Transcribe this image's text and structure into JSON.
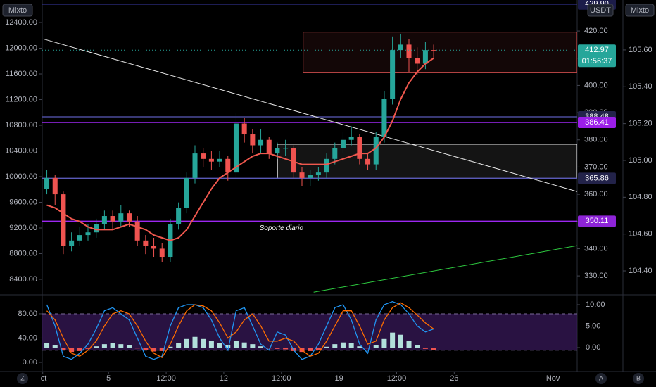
{
  "chart_data": [
    {
      "type": "candlestick",
      "scale_label": "Mixto",
      "scale_label_right": "Mixto",
      "currency": "USDT",
      "countdown": "01:56:37",
      "annotation": "Soporte diario",
      "x": [
        1.25,
        1.75,
        2.25,
        2.75,
        3.25,
        3.75,
        4.25,
        4.75,
        5.25,
        5.75,
        6.25,
        6.75,
        7.25,
        7.75,
        8.25,
        8.75,
        9.25,
        9.75,
        10.25,
        10.75,
        11.25,
        11.75,
        12.25,
        12.75,
        13.25,
        13.75,
        14.25,
        14.75,
        15.25,
        15.75,
        16.25,
        16.75,
        17.25,
        17.75,
        18.25,
        18.75,
        19.25,
        19.75,
        20.25,
        20.75,
        21.25,
        21.75,
        22.25,
        22.75,
        23.25,
        23.75,
        24.25,
        24.75
      ],
      "open": [
        362,
        366,
        360,
        341,
        343,
        345,
        346,
        349,
        352,
        350,
        353,
        350,
        343,
        341,
        340,
        337,
        349,
        355,
        366,
        375,
        373,
        372,
        373,
        368,
        386,
        382,
        378,
        380,
        375,
        377,
        377,
        368,
        366,
        367,
        368,
        373,
        377,
        380,
        381,
        373,
        371,
        381,
        395,
        413,
        415,
        410,
        408,
        413
      ],
      "high": [
        369,
        367,
        361,
        346,
        348,
        349,
        351,
        354,
        354,
        356,
        354,
        352,
        345,
        344,
        342,
        351,
        357,
        368,
        378,
        377,
        376,
        376,
        374,
        390,
        388,
        384,
        384,
        381,
        379,
        380,
        378,
        370,
        369,
        370,
        375,
        379,
        383,
        385,
        382,
        375,
        383,
        398,
        418,
        419,
        417,
        414,
        416,
        415
      ],
      "low": [
        360,
        356,
        338,
        339,
        341,
        343,
        344,
        347,
        347,
        348,
        348,
        341,
        338,
        337,
        335,
        335,
        347,
        353,
        364,
        370,
        369,
        370,
        365,
        366,
        379,
        375,
        375,
        373,
        373,
        374,
        366,
        363,
        363,
        365,
        366,
        371,
        375,
        378,
        371,
        369,
        369,
        379,
        393,
        410,
        405,
        404,
        406,
        410
      ],
      "close": [
        366,
        360,
        341,
        343,
        345,
        346,
        349,
        352,
        350,
        353,
        350,
        343,
        341,
        340,
        337,
        349,
        355,
        366,
        375,
        373,
        372,
        373,
        368,
        386,
        382,
        378,
        380,
        375,
        377,
        377,
        368,
        366,
        367,
        368,
        373,
        377,
        380,
        381,
        373,
        371,
        381,
        395,
        413,
        415,
        410,
        408,
        413,
        412.97
      ],
      "up_color": "#26a69a",
      "down_color": "#ef5350",
      "ma": [
        356,
        355,
        353,
        351,
        350,
        348,
        347,
        347,
        347,
        348,
        349,
        348,
        347,
        345,
        344,
        343,
        344,
        347,
        352,
        357,
        362,
        366,
        368,
        370,
        372,
        374,
        375,
        375,
        374,
        373,
        372,
        371,
        371,
        371,
        371,
        372,
        373,
        374,
        375,
        375,
        377,
        381,
        387,
        395,
        401,
        405,
        408,
        410
      ],
      "ma_color": "#f0584e",
      "xlim": [
        0.97,
        33.47
      ],
      "xticks": [
        {
          "value": 1,
          "label": "ct"
        },
        5,
        {
          "value": 8.5,
          "label": "12:00"
        },
        12,
        {
          "value": 15.5,
          "label": "12:00"
        },
        19,
        {
          "value": 22.5,
          "label": "12:00"
        },
        26,
        {
          "value": 32,
          "label": "Nov"
        }
      ],
      "ylim": [
        323.3,
        431.4
      ],
      "yticks": [
        {
          "value": 330,
          "label": "330.00"
        },
        {
          "value": 340,
          "label": "340.00"
        },
        {
          "value": 350,
          "label": "350.00"
        },
        {
          "value": 360,
          "label": "360.00"
        },
        {
          "value": 370,
          "label": "370.00"
        },
        {
          "value": 380,
          "label": "380.00"
        },
        {
          "value": 390,
          "label": "390.00"
        },
        {
          "value": 400,
          "label": "400.00"
        },
        {
          "value": 410,
          "label": "410.00"
        },
        {
          "value": 420,
          "label": "420.00"
        }
      ],
      "y2lim": [
        8170,
        12751
      ],
      "y2ticks": [
        {
          "value": 8400,
          "label": "8400.00"
        },
        {
          "value": 8800,
          "label": "8800.00"
        },
        {
          "value": 9200,
          "label": "9200.00"
        },
        {
          "value": 9600,
          "label": "9600.00"
        },
        {
          "value": 10000,
          "label": "10000.00"
        },
        {
          "value": 10400,
          "label": "10400.00"
        },
        {
          "value": 10800,
          "label": "10800.00"
        },
        {
          "value": 11200,
          "label": "11200.00"
        },
        {
          "value": 11600,
          "label": "11600.00"
        },
        {
          "value": 12000,
          "label": "12000.00"
        },
        {
          "value": 12400,
          "label": "12400.00"
        }
      ],
      "y3lim": [
        104.274,
        105.871
      ],
      "y3ticks": [
        {
          "value": 104.4,
          "label": "104.40"
        },
        {
          "value": 104.6,
          "label": "104.60"
        },
        {
          "value": 104.8,
          "label": "104.80"
        },
        {
          "value": 105,
          "label": "105.00"
        },
        {
          "value": 105.2,
          "label": "105.20"
        },
        {
          "value": 105.4,
          "label": "105.40"
        },
        {
          "value": 105.6,
          "label": "105.60"
        }
      ],
      "levels": {
        "values": [
          429.9,
          388.48,
          386.41,
          365.86,
          350.11
        ],
        "value_labels": [
          "429.90",
          "388.48",
          "386.41",
          "365.86",
          "350.11"
        ],
        "colors": [
          "#3a3aa8",
          "#4a4a9a",
          "#9c27f0",
          "#5a5ab8",
          "#9c27f0"
        ],
        "label_colors": [
          "#1c1c4a",
          "#23234a",
          "#9c1ee8",
          "#23234a",
          "#8e24d8"
        ]
      },
      "zones": [
        {
          "x": [
            16.82,
            33.47
          ],
          "y": [
            404.7,
            419.6
          ],
          "color": "#f05a5a"
        },
        {
          "x": [
            15.26,
            33.47
          ],
          "y": [
            365.86,
            378.4
          ],
          "color": "#ffffff"
        }
      ],
      "trendlines": [
        {
          "x": [
            1.03,
            33.47
          ],
          "y": [
            417.1,
            361.0
          ],
          "color": "#e8e8e8"
        },
        {
          "x": [
            17.46,
            33.47
          ],
          "y": [
            324,
            341.1
          ],
          "color": "#2ecc40"
        }
      ]
    },
    {
      "type": "oscillator",
      "k": [
        95,
        60,
        10,
        5,
        15,
        30,
        55,
        85,
        90,
        80,
        70,
        40,
        10,
        5,
        10,
        60,
        90,
        95,
        95,
        90,
        70,
        40,
        20,
        85,
        90,
        60,
        30,
        20,
        50,
        45,
        20,
        5,
        10,
        30,
        60,
        90,
        95,
        70,
        30,
        15,
        70,
        95,
        100,
        95,
        80,
        60,
        50,
        55
      ],
      "d": [
        85,
        70,
        40,
        15,
        10,
        20,
        35,
        60,
        80,
        85,
        80,
        60,
        35,
        15,
        8,
        30,
        60,
        85,
        95,
        93,
        85,
        65,
        40,
        50,
        70,
        80,
        60,
        35,
        35,
        40,
        35,
        20,
        10,
        15,
        35,
        60,
        85,
        85,
        60,
        30,
        35,
        70,
        90,
        98,
        90,
        78,
        65,
        55
      ],
      "hist": [
        1,
        0.5,
        -0.5,
        -1,
        -0.8,
        -0.3,
        0.3,
        0.8,
        1,
        0.8,
        0.5,
        -0.2,
        -0.6,
        -0.9,
        -0.8,
        0.2,
        1,
        2,
        2.5,
        2,
        1.5,
        1,
        0.5,
        1.5,
        1.2,
        0.8,
        0.3,
        -0.2,
        -0.3,
        -0.4,
        -0.8,
        -1,
        -0.8,
        -0.5,
        0.2,
        0.8,
        1.2,
        1,
        0.3,
        -0.2,
        0.5,
        2,
        3.5,
        3,
        1.5,
        0.5,
        -0.3,
        -0.6
      ],
      "k_color": "#2196f3",
      "d_color": "#ff6d00",
      "hist_up_color": "#b2dfdb",
      "hist_down_color": "#ef5350",
      "band_color": "#3a1a5e",
      "band": [
        20,
        80
      ],
      "ylim": [
        -15.1,
        110.1
      ],
      "yticks": [
        {
          "value": 0,
          "label": "0.00"
        },
        {
          "value": 40,
          "label": "40.00"
        },
        {
          "value": 80,
          "label": "80.00"
        }
      ],
      "y2lim": [
        -5.57,
        12.13
      ],
      "y2ticks": [
        {
          "value": 0,
          "label": "0.00"
        },
        {
          "value": 5,
          "label": "5.00"
        },
        {
          "value": 10,
          "label": "10.00"
        }
      ]
    }
  ],
  "toolbar": [
    "Z",
    "A",
    "B"
  ]
}
